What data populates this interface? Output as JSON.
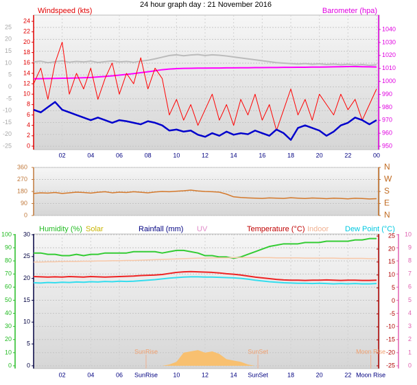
{
  "chart_data": [
    {
      "type": "line",
      "title": "24 hour graph day : 21 November 2016",
      "ylabel": "Windspeed (kts)",
      "y2label": "Barometer (hpa)",
      "x": [
        0,
        0.5,
        1,
        1.5,
        2,
        2.5,
        3,
        3.5,
        4,
        4.5,
        5,
        5.5,
        6,
        6.5,
        7,
        7.5,
        8,
        8.5,
        9,
        9.5,
        10,
        10.5,
        11,
        11.5,
        12,
        12.5,
        13,
        13.5,
        14,
        14.5,
        15,
        15.5,
        16,
        16.5,
        17,
        17.5,
        18,
        18.5,
        19,
        19.5,
        20,
        20.5,
        21,
        21.5,
        22,
        22.5,
        23,
        23.5,
        24
      ],
      "xlim": [
        0,
        24
      ],
      "xticks": [
        {
          "value": 2,
          "label": "02"
        },
        {
          "value": 4,
          "label": "04"
        },
        {
          "value": 6,
          "label": "06"
        },
        {
          "value": 8,
          "label": "08"
        },
        10,
        12,
        14,
        16,
        18,
        20,
        22,
        {
          "value": 24,
          "label": "00"
        }
      ],
      "ylim": [
        -0.66,
        25.2
      ],
      "yticks": [
        0,
        2,
        4,
        6,
        8,
        10,
        12,
        14,
        16,
        18,
        20,
        22,
        24
      ],
      "ycolor": "#e00000",
      "y2lim": [
        947.4,
        1051.1
      ],
      "y2ticks": [
        950,
        960,
        970,
        980,
        990,
        1000,
        1010,
        1020,
        1030,
        1040
      ],
      "y2color": "#e000e0",
      "y3lim": [
        -26.4,
        30.2
      ],
      "y3ticks": [
        -25,
        -20,
        -15,
        -10,
        -5,
        0,
        5,
        10,
        15,
        20,
        25
      ],
      "y3color": "#a8a8a8",
      "grid": "y3",
      "series": [
        {
          "color": "#bbbbbb",
          "width": 2,
          "axis": "y3",
          "values": [
            10.5,
            10.8,
            10.2,
            10.6,
            10.9,
            10.4,
            10.7,
            10.5,
            10.8,
            10.3,
            10.6,
            10.9,
            10.5,
            10.7,
            10.4,
            10.8,
            11.2,
            11.8,
            12.5,
            13.2,
            13.5,
            13.1,
            13.4,
            13.6,
            13.2,
            13.5,
            13.3,
            13.0,
            12.6,
            12.2,
            11.8,
            11.4,
            11.0,
            10.6,
            10.2,
            10.0,
            9.8,
            9.6,
            9.8,
            9.5,
            9.7,
            9.4,
            9.6,
            9.3,
            9.5,
            9.2,
            9.4,
            9.1,
            9.3
          ]
        },
        {
          "color": "#ff00ff",
          "width": 2,
          "axis": "y2",
          "values": [
            1002,
            1002.1,
            1002.2,
            1002.3,
            1002.4,
            1002.5,
            1002.6,
            1002.8,
            1003,
            1003.4,
            1003.8,
            1004.3,
            1004.8,
            1005.4,
            1006,
            1006.7,
            1007.4,
            1008.2,
            1009,
            1009.5,
            1009.8,
            1010,
            1010.1,
            1010.2,
            1010.2,
            1010.3,
            1010.3,
            1010.4,
            1010.4,
            1010.5,
            1010.5,
            1010.6,
            1010.6,
            1010.7,
            1010.7,
            1010.8,
            1010.8,
            1010.9,
            1010.9,
            1011,
            1011,
            1011.1,
            1011.2,
            1011.3,
            1011.4,
            1011.4,
            1011.3,
            1011.2,
            1011.1
          ]
        },
        {
          "color": "#ff0000",
          "width": 1,
          "axis": "y",
          "values": [
            12,
            15,
            9,
            16,
            20,
            10,
            14,
            11,
            15,
            9,
            13,
            16,
            10,
            14,
            12,
            17,
            11,
            15,
            13,
            6,
            9,
            5,
            8,
            4,
            7,
            10,
            5,
            8,
            4,
            9,
            6,
            10,
            5,
            8,
            3,
            7,
            11,
            6,
            9,
            5,
            10,
            8,
            6,
            10,
            7,
            9,
            5,
            8,
            11
          ]
        },
        {
          "color": "#0000cc",
          "width": 2.5,
          "axis": "y",
          "values": [
            7,
            6.5,
            7.5,
            8.5,
            7,
            6.5,
            6,
            5.5,
            5,
            5.5,
            5,
            4.5,
            5,
            4.8,
            4.5,
            4.2,
            4.8,
            4.5,
            4,
            3,
            3.2,
            2.8,
            3,
            2.2,
            1.8,
            2.5,
            2,
            2.8,
            2.2,
            2.5,
            2.3,
            3,
            2.5,
            2,
            3.2,
            2.5,
            1.2,
            3.5,
            4,
            3.5,
            3,
            2,
            2.8,
            4,
            4.5,
            5.5,
            5,
            4.2,
            5
          ]
        }
      ]
    },
    {
      "type": "line",
      "x": [
        0,
        0.5,
        1,
        1.5,
        2,
        2.5,
        3,
        3.5,
        4,
        4.5,
        5,
        5.5,
        6,
        6.5,
        7,
        7.5,
        8,
        8.5,
        9,
        9.5,
        10,
        10.5,
        11,
        11.5,
        12,
        12.5,
        13,
        13.5,
        14,
        14.5,
        15,
        15.5,
        16,
        16.5,
        17,
        17.5,
        18,
        18.5,
        19,
        19.5,
        20,
        20.5,
        21,
        21.5,
        22,
        22.5,
        23,
        23.5,
        24
      ],
      "xlim": [
        0,
        24
      ],
      "ylim": [
        0,
        360
      ],
      "yticks": [
        0,
        90,
        180,
        270,
        360
      ],
      "ycolor": "#c0783a",
      "y2lim": [
        0,
        360
      ],
      "y2ticks": [
        {
          "value": 0,
          "label": "N"
        },
        {
          "value": 90,
          "label": "E"
        },
        {
          "value": 180,
          "label": "S"
        },
        {
          "value": 270,
          "label": "W"
        },
        {
          "value": 360,
          "label": "N"
        }
      ],
      "y2color": "#c06a20",
      "grid": "y",
      "series": [
        {
          "color": "#d4782a",
          "width": 1.5,
          "axis": "y",
          "values": [
            165,
            170,
            168,
            172,
            165,
            170,
            175,
            172,
            168,
            174,
            178,
            170,
            175,
            172,
            178,
            174,
            170,
            176,
            180,
            178,
            182,
            185,
            190,
            184,
            180,
            178,
            175,
            160,
            140,
            135,
            132,
            130,
            128,
            132,
            130,
            128,
            133,
            130,
            127,
            131,
            129,
            126,
            130,
            128,
            125,
            129,
            127,
            124,
            126
          ]
        }
      ]
    },
    {
      "type": "line",
      "ylabel": "Humidity (%)",
      "y3label": "Rainfall (mm)",
      "y4label": "UV",
      "y2label": "Temperature (°C)",
      "x": [
        0,
        0.5,
        1,
        1.5,
        2,
        2.5,
        3,
        3.5,
        4,
        4.5,
        5,
        5.5,
        6,
        6.5,
        7,
        7.5,
        8,
        8.5,
        9,
        9.5,
        10,
        10.5,
        11,
        11.5,
        12,
        12.5,
        13,
        13.5,
        14,
        14.5,
        15,
        15.5,
        16,
        16.5,
        17,
        17.5,
        18,
        18.5,
        19,
        19.5,
        20,
        20.5,
        21,
        21.5,
        22,
        22.5,
        23,
        23.5,
        24
      ],
      "xlim": [
        0,
        24
      ],
      "xticks": [
        {
          "value": 2,
          "label": "02"
        },
        {
          "value": 4,
          "label": "04"
        },
        {
          "value": 6,
          "label": "06"
        },
        10,
        12,
        14,
        18,
        20,
        22
      ],
      "ylim": [
        -2.1,
        100.5
      ],
      "yticks": [
        0,
        10,
        20,
        30,
        40,
        50,
        60,
        70,
        80,
        90,
        100
      ],
      "ycolor": "#22bb22",
      "y2lim": [
        -26.06,
        25.8
      ],
      "y2ticks": [
        -25,
        -20,
        -15,
        -10,
        -5,
        0,
        5,
        10,
        15,
        20,
        25
      ],
      "y2color": "#b00000",
      "y3lim": [
        -0.63,
        30.16
      ],
      "y3ticks": [
        0,
        5,
        10,
        15,
        20,
        25,
        30
      ],
      "y3color": "#000040",
      "y4lim": [
        -0.21,
        10.05
      ],
      "y4ticks": [
        0,
        1,
        2,
        3,
        4,
        5,
        6,
        7,
        8,
        9,
        10
      ],
      "y4color": "#e060b0",
      "grid": "y",
      "annotations": [
        {
          "label": "SunRise",
          "x": 7.87
        },
        {
          "label": "SunSet",
          "x": 15.7
        },
        {
          "label": "Moon Rise",
          "x": 23.6
        }
      ],
      "series": [
        {
          "color": "#33cc33",
          "width": 2,
          "axis": "y",
          "values": [
            86,
            86,
            85,
            85,
            84,
            84,
            85,
            84,
            85,
            85,
            86,
            86,
            86,
            86,
            87,
            87,
            87,
            87,
            86,
            87,
            88,
            88,
            87,
            86,
            84,
            84,
            83,
            83,
            82,
            83,
            85,
            87,
            89,
            91,
            92,
            93,
            93,
            93,
            94,
            94,
            94,
            95,
            95,
            95,
            95,
            96,
            96,
            97,
            97
          ]
        },
        {
          "name": "Solar",
          "color": "#f8c070",
          "style": "area",
          "axis": "y",
          "values": [
            0,
            0,
            0,
            0,
            0,
            0,
            0,
            0,
            0,
            0,
            0,
            0,
            0,
            0,
            0,
            0,
            0,
            0,
            0,
            1,
            3,
            10,
            11,
            12,
            10,
            11,
            9,
            5,
            4,
            3,
            1,
            0,
            0,
            0,
            0,
            0,
            0,
            0,
            0,
            0,
            0,
            0,
            0,
            0,
            0,
            0,
            0,
            0,
            0
          ]
        },
        {
          "color": "#ee2222",
          "width": 2,
          "axis": "y2",
          "values": [
            9.4,
            9.3,
            9.2,
            9.3,
            9.2,
            9.4,
            9.3,
            9.2,
            9.4,
            9.3,
            9.2,
            9.3,
            9.4,
            9.5,
            9.6,
            9.8,
            9.9,
            10.0,
            10.2,
            10.6,
            11.0,
            11.2,
            11.3,
            11.2,
            11.1,
            11.0,
            10.8,
            10.5,
            10.3,
            10.0,
            9.6,
            9.2,
            8.9,
            8.6,
            8.3,
            8.1,
            8.0,
            8.0,
            7.9,
            8.0,
            8.0,
            8.1,
            8.0,
            7.9,
            8.0,
            8.0,
            7.9,
            7.9,
            8.0
          ]
        },
        {
          "name": "Indoor",
          "color": "#f8c8a8",
          "width": 1.5,
          "axis": "y2",
          "values": [
            15.0,
            15.0,
            15.1,
            15.1,
            15.2,
            15.2,
            15.2,
            15.3,
            15.3,
            15.4,
            15.4,
            15.5,
            15.5,
            15.6,
            15.6,
            15.7,
            15.8,
            15.9,
            16.0,
            16.1,
            16.2,
            16.3,
            16.4,
            16.5,
            16.5,
            16.6,
            16.6,
            16.6,
            16.7,
            16.7,
            16.7,
            16.7,
            16.7,
            16.7,
            16.6,
            16.6,
            16.6,
            16.6,
            16.5,
            16.5,
            16.5,
            16.5,
            16.5,
            16.4,
            16.4,
            16.4,
            16.4,
            16.3,
            16.3
          ]
        },
        {
          "name": "Dew Point (°C)",
          "color": "#33ddee",
          "width": 2,
          "axis": "y2",
          "values": [
            7.0,
            6.9,
            7.1,
            7.0,
            7.2,
            7.1,
            7.3,
            7.2,
            7.4,
            7.3,
            7.5,
            7.4,
            7.6,
            7.5,
            7.6,
            7.8,
            8.0,
            8.2,
            8.5,
            8.8,
            9.0,
            9.2,
            9.3,
            9.3,
            9.2,
            9.2,
            9.1,
            9.0,
            8.9,
            8.7,
            8.4,
            8.0,
            7.7,
            7.4,
            7.2,
            7.0,
            6.9,
            6.8,
            6.8,
            6.7,
            6.8,
            6.7,
            6.6,
            6.7,
            6.6,
            6.7,
            6.6,
            6.6,
            6.7
          ]
        }
      ]
    }
  ]
}
